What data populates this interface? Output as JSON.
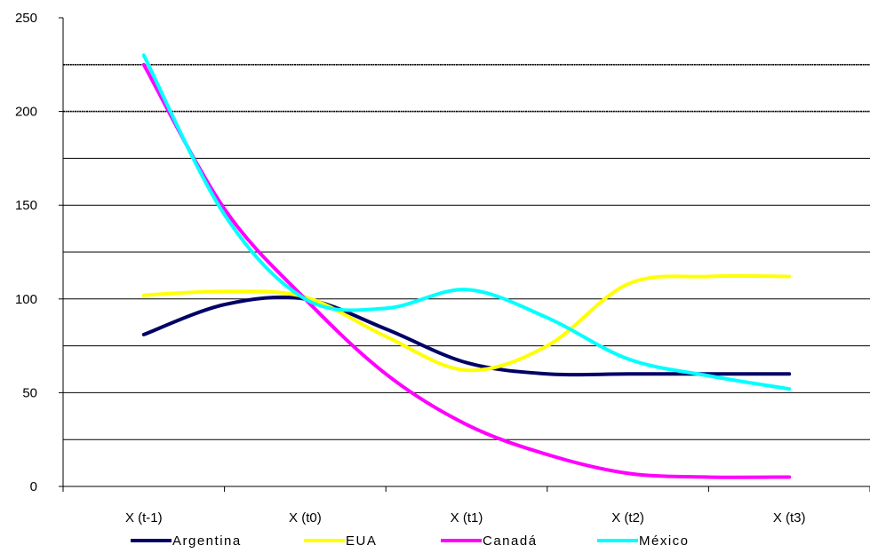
{
  "chart_data": {
    "type": "line",
    "title": "",
    "xlabel": "",
    "ylabel": "",
    "categories": [
      "X (t-1)",
      "X (t0)",
      "X (t1)",
      "X (t2)",
      "X (t3)"
    ],
    "ylim": [
      0,
      250
    ],
    "yticks": [
      0,
      50,
      100,
      150,
      200,
      250
    ],
    "gridlines": [
      25,
      50,
      75,
      100,
      125,
      150,
      175,
      200,
      225
    ],
    "grid": true,
    "legend_position": "bottom",
    "series": [
      {
        "name": "Argentina",
        "color": "#000066",
        "points": [
          [
            0,
            81
          ],
          [
            0.5,
            97
          ],
          [
            1,
            100
          ],
          [
            1.5,
            84
          ],
          [
            2,
            66
          ],
          [
            2.5,
            60
          ],
          [
            3,
            60
          ],
          [
            3.5,
            60
          ],
          [
            4,
            60
          ]
        ]
      },
      {
        "name": "EUA",
        "color": "#FFFF00",
        "points": [
          [
            0,
            102
          ],
          [
            0.5,
            104
          ],
          [
            1,
            101
          ],
          [
            1.5,
            80
          ],
          [
            2,
            62
          ],
          [
            2.5,
            75
          ],
          [
            3,
            108
          ],
          [
            3.5,
            112
          ],
          [
            4,
            112
          ]
        ]
      },
      {
        "name": "Canadá",
        "color": "#FF00FF",
        "points": [
          [
            0,
            225
          ],
          [
            0.5,
            148
          ],
          [
            1,
            100
          ],
          [
            1.5,
            60
          ],
          [
            2,
            33
          ],
          [
            2.5,
            17
          ],
          [
            3,
            7
          ],
          [
            3.5,
            5
          ],
          [
            4,
            5
          ]
        ]
      },
      {
        "name": "México",
        "color": "#00FFFF",
        "points": [
          [
            0,
            230
          ],
          [
            0.5,
            145
          ],
          [
            1,
            100
          ],
          [
            1.5,
            95
          ],
          [
            2,
            105
          ],
          [
            2.5,
            90
          ],
          [
            3,
            68
          ],
          [
            3.5,
            59
          ],
          [
            4,
            52
          ]
        ]
      }
    ]
  }
}
